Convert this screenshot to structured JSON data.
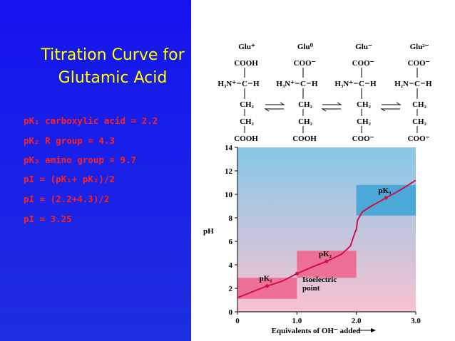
{
  "title_lines": [
    "Titration Curve for",
    "Glutamic Acid"
  ],
  "notes": [
    "pK₁ carboxylic acid = 2.2",
    "pK₂ R group = 4.3",
    "pK₃ amino group = 9.7",
    "pI = (pK₁+ pK₂)/2",
    "pI = (2.2+4.3)/2",
    "pI = 3.25"
  ],
  "structures": [
    {
      "label": "Glu⁺",
      "top": "COOH",
      "left": "H₃N⁺",
      "center": "C",
      "right": "H",
      "ch2a": "CH₂",
      "ch2b": "CH₂",
      "bottom": "COOH"
    },
    {
      "label": "Glu⁰",
      "top": "COO⁻",
      "left": "H₃N⁺",
      "center": "C",
      "right": "H",
      "ch2a": "CH₂",
      "ch2b": "CH₂",
      "bottom": "COOH"
    },
    {
      "label": "Glu⁻",
      "top": "COO⁻",
      "left": "H₃N⁺",
      "center": "C",
      "right": "H",
      "ch2a": "CH₂",
      "ch2b": "CH₂",
      "bottom": "COO⁻"
    },
    {
      "label": "Glu²⁻",
      "top": "COO⁻",
      "left": "H₂N",
      "center": "C",
      "right": "H",
      "ch2a": "CH₂",
      "ch2b": "CH₂",
      "bottom": "COO⁻"
    }
  ],
  "chart_data": {
    "type": "line",
    "x_label": "Equivalents of OH⁻ added",
    "y_label": "pH",
    "x": [
      0,
      0.25,
      0.5,
      0.75,
      1.0,
      1.25,
      1.5,
      1.75,
      1.9,
      1.98,
      2.0,
      2.02,
      2.1,
      2.25,
      2.5,
      2.75,
      3.0
    ],
    "series": [
      {
        "color": "#d0104c",
        "values": [
          1.2,
          1.7,
          2.2,
          2.6,
          3.25,
          3.8,
          4.3,
          4.9,
          5.6,
          6.8,
          7.0,
          7.8,
          8.5,
          9.0,
          9.7,
          10.4,
          11.2
        ]
      }
    ],
    "points": [
      {
        "label": "pK₁",
        "x": 0.5,
        "y": 2.2
      },
      {
        "label": "pK₂",
        "x": 1.5,
        "y": 4.3
      },
      {
        "label": null,
        "x": 1.0,
        "y": 3.25
      },
      {
        "label": "pK₃",
        "x": 2.5,
        "y": 9.7
      }
    ],
    "annotation_lines": [
      "Isoelectric",
      "point"
    ],
    "shaded_regions": [
      {
        "x": [
          0,
          1
        ],
        "y": [
          1.1,
          2.9
        ],
        "color": "#f0628a"
      },
      {
        "x": [
          1,
          2
        ],
        "y": [
          2.9,
          5.2
        ],
        "color": "#f0628a"
      },
      {
        "x": [
          2,
          3
        ],
        "y": [
          8.2,
          10.8
        ],
        "color": "#3ba3d6"
      }
    ],
    "xlim": [
      0,
      3
    ],
    "ylim": [
      0,
      14
    ],
    "xticks": [
      0,
      {
        "value": 1,
        "label": "1.0"
      },
      {
        "value": 2,
        "label": "2.0"
      },
      {
        "value": 3,
        "label": "3.0"
      }
    ],
    "yticks": [
      0,
      2,
      4,
      6,
      8,
      10,
      12,
      14
    ]
  }
}
